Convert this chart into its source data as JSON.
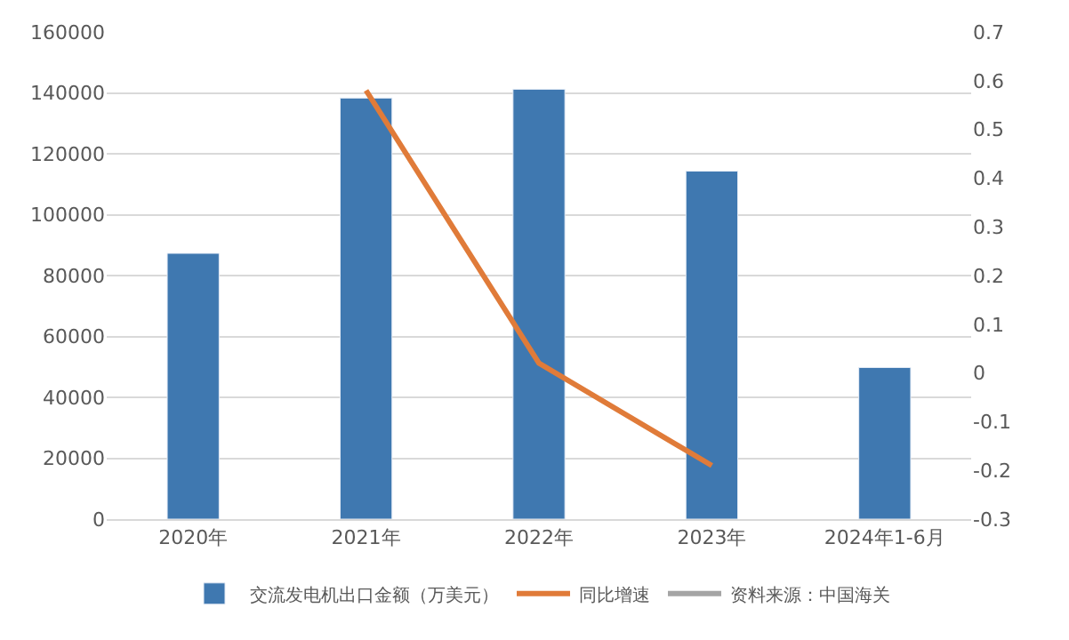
{
  "chart_data": {
    "type": "bar",
    "categories": [
      "2020年",
      "2021年",
      "2022年",
      "2023年",
      "2024年1-6月"
    ],
    "series": [
      {
        "name": "交流发电机出口金额（万美元）",
        "color": "#3f78b0",
        "values": [
          87300,
          138300,
          141200,
          114300,
          49800
        ]
      },
      {
        "name": "同比增速",
        "type": "line",
        "axis": "y2",
        "color": "#e07b39",
        "values": [
          null,
          0.58,
          0.02,
          -0.19,
          null
        ]
      },
      {
        "name": "资料来源：中国海关",
        "type": "line",
        "color": "#a5a5a5",
        "values": [
          null,
          null,
          null,
          null,
          null
        ]
      }
    ],
    "ylim": [
      0,
      160000
    ],
    "yticks": [
      0,
      20000,
      40000,
      60000,
      80000,
      100000,
      120000,
      140000,
      160000
    ],
    "y2lim": [
      -0.3,
      0.7
    ],
    "y2ticks": [
      -0.3,
      -0.2,
      -0.1,
      0,
      0.1,
      0.2,
      0.3,
      0.4,
      0.5,
      0.6,
      0.7
    ],
    "grid": "y",
    "legend": "bottom",
    "marker": "none"
  }
}
